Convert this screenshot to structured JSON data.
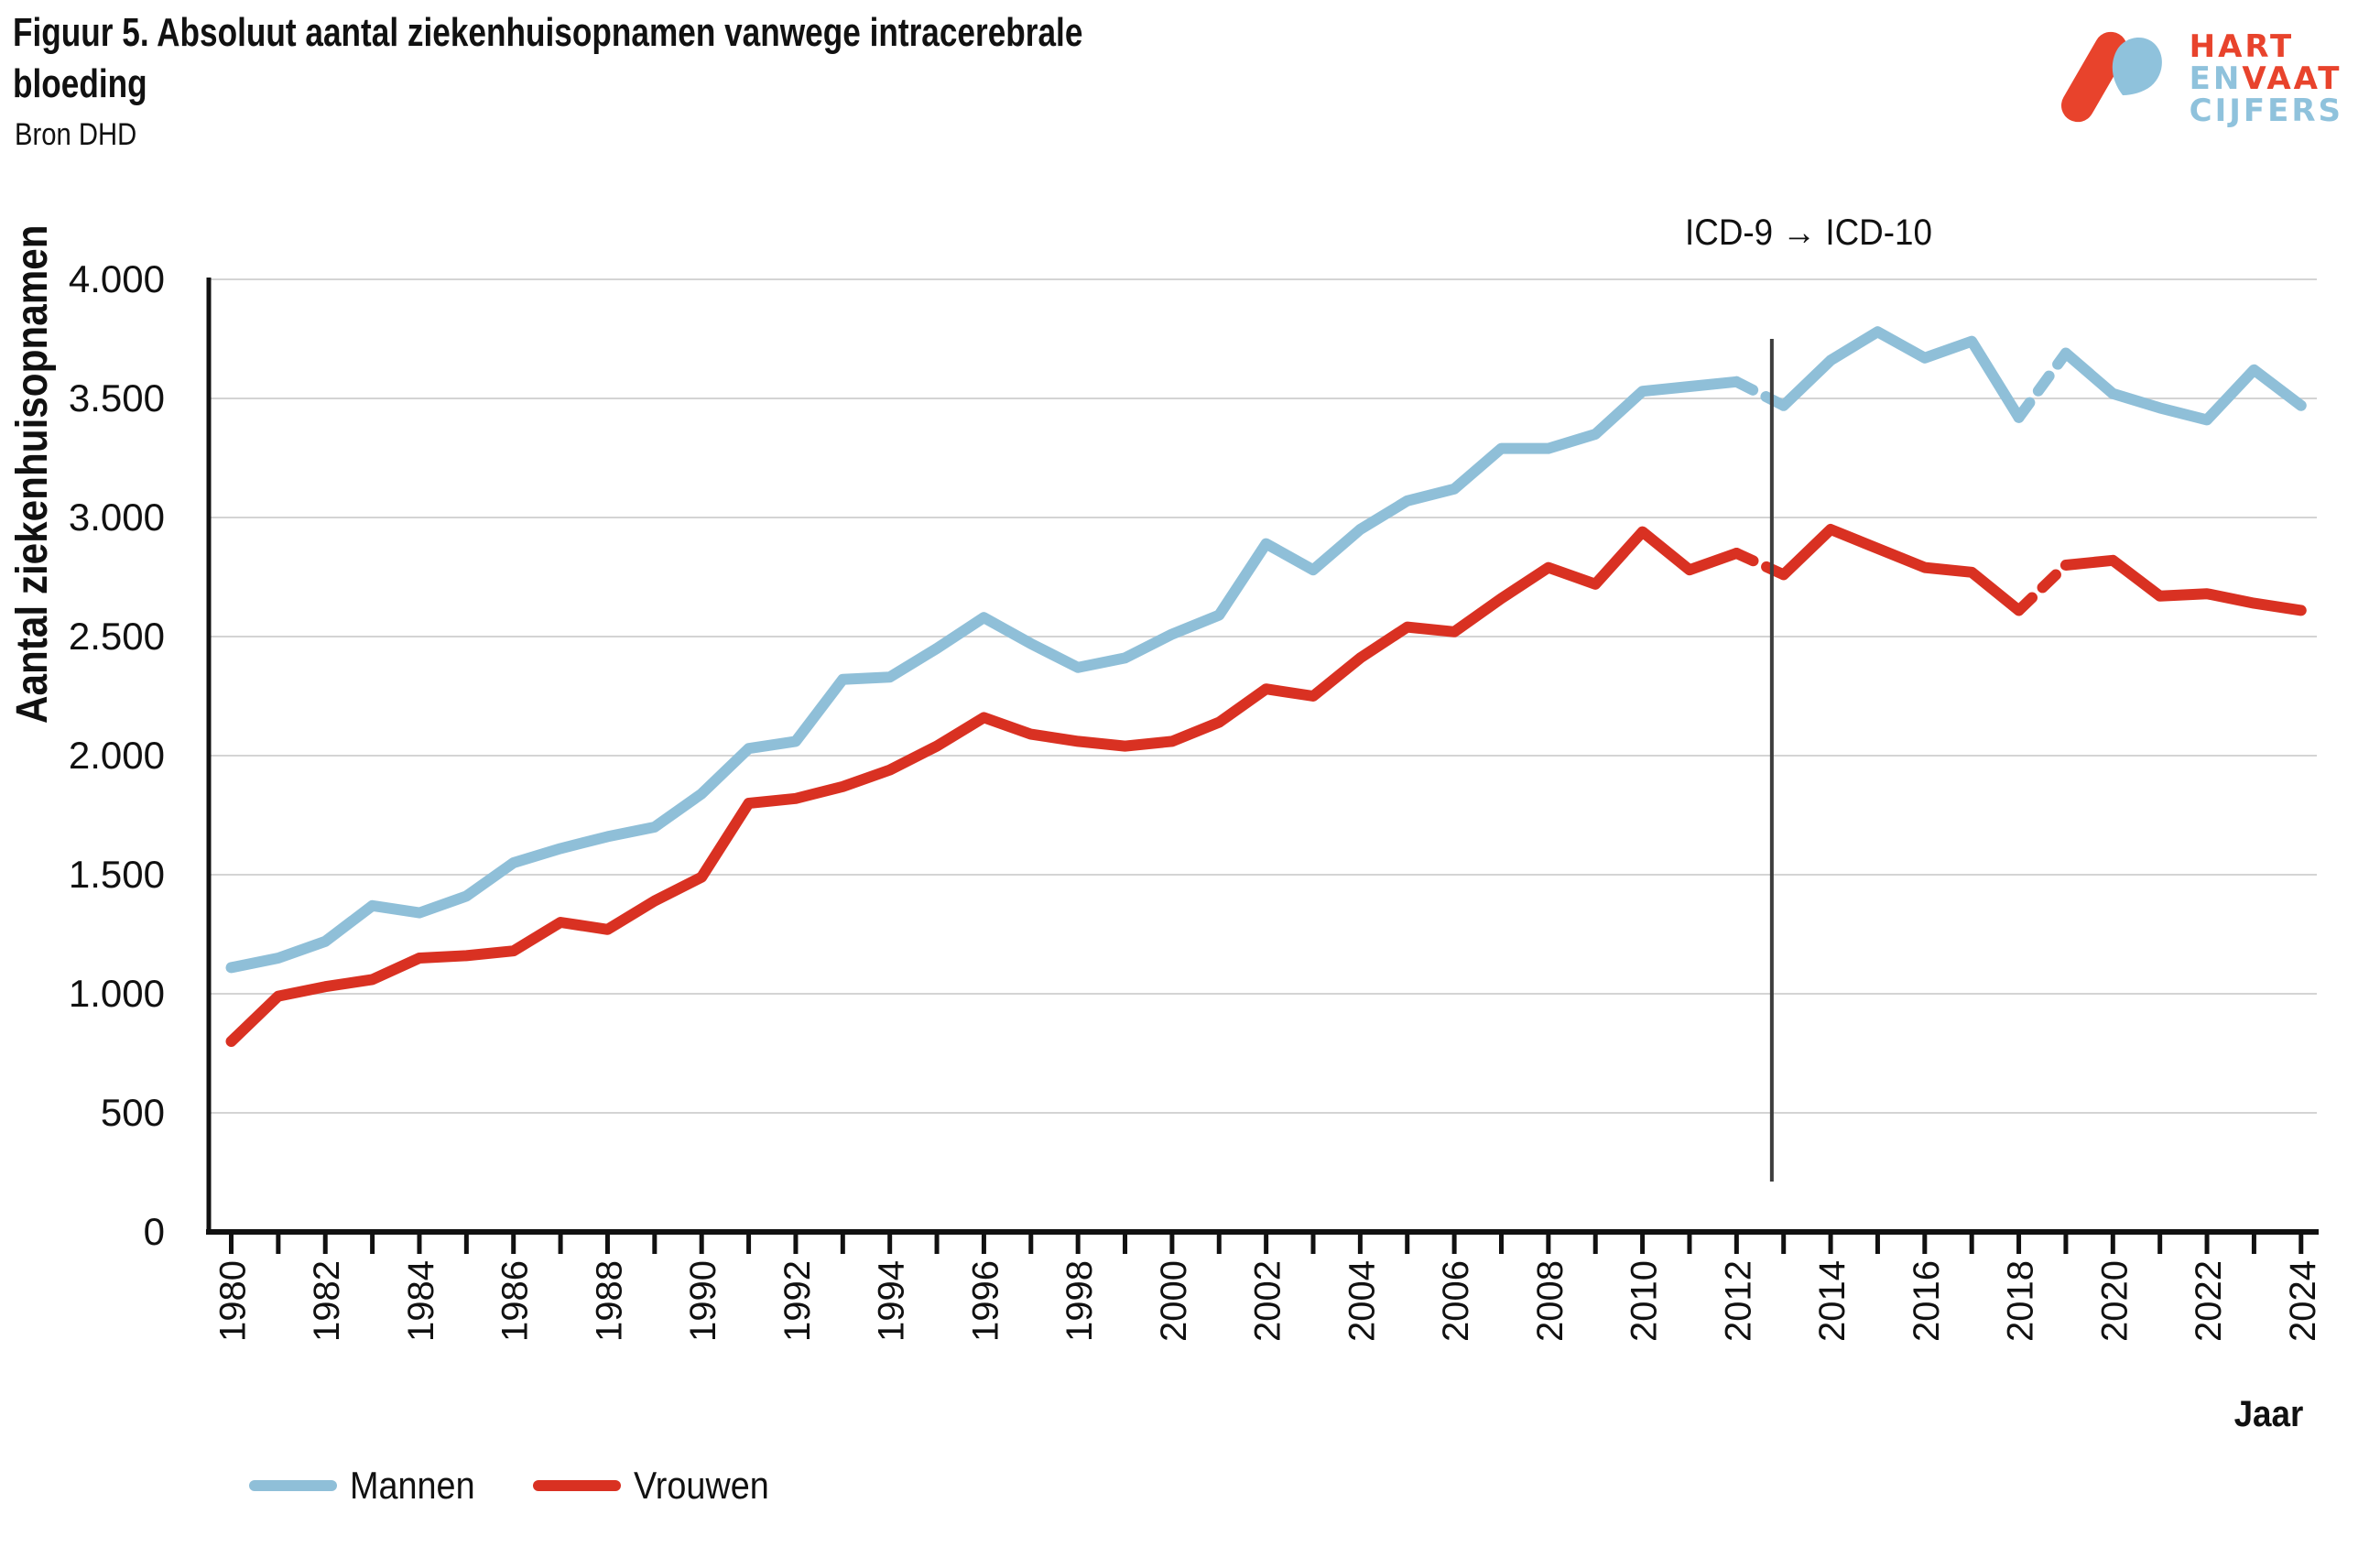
{
  "header": {
    "title_line1": "Figuur 5. Absoluut aantal ziekenhuisopnamen vanwege intracerebrale",
    "title_line2": "bloeding",
    "source": "Bron DHD"
  },
  "logo": {
    "word1": "HART",
    "word2a": "EN",
    "word2b": "VAAT",
    "word3": "CIJFERS",
    "red": "#E8432C",
    "blue": "#8FC2DC"
  },
  "annotation": {
    "label": "ICD-9 → ICD-10",
    "year": 2012.75
  },
  "legend": {
    "items": [
      {
        "label": "Mannen",
        "color": "#8FBFD8"
      },
      {
        "label": "Vrouwen",
        "color": "#D93122"
      }
    ]
  },
  "chart_data": {
    "type": "line",
    "title": "Figuur 5. Absoluut aantal ziekenhuisopnamen vanwege intracerebrale bloeding",
    "subtitle": "Bron DHD",
    "xlabel": "Jaar",
    "ylabel": "Aantal ziekenhuisopnamen",
    "ylim": [
      0,
      4000
    ],
    "grid": "horizontal",
    "legend_position": "bottom-left",
    "x": [
      1980,
      1981,
      1982,
      1983,
      1984,
      1985,
      1986,
      1987,
      1988,
      1989,
      1990,
      1991,
      1992,
      1993,
      1994,
      1995,
      1996,
      1997,
      1998,
      1999,
      2000,
      2001,
      2002,
      2003,
      2004,
      2005,
      2006,
      2007,
      2008,
      2009,
      2010,
      2011,
      2012,
      2013,
      2014,
      2015,
      2016,
      2017,
      2018,
      2019,
      2020,
      2021,
      2022,
      2023,
      2024
    ],
    "series": [
      {
        "name": "Mannen",
        "color": "#8FBFD8",
        "values": [
          1110,
          1150,
          1220,
          1370,
          1340,
          1410,
          1550,
          1610,
          1660,
          1700,
          1840,
          2030,
          2060,
          2320,
          2330,
          2450,
          2580,
          2470,
          2370,
          2410,
          2510,
          2590,
          2890,
          2780,
          2950,
          3070,
          3120,
          3290,
          3290,
          3350,
          3530,
          3550,
          3570,
          3470,
          3660,
          3780,
          3670,
          3740,
          3420,
          3690,
          3520,
          3460,
          3410,
          3620,
          3470
        ]
      },
      {
        "name": "Vrouwen",
        "color": "#D93122",
        "values": [
          800,
          990,
          1030,
          1060,
          1150,
          1160,
          1180,
          1300,
          1270,
          1390,
          1490,
          1800,
          1820,
          1870,
          1940,
          2040,
          2160,
          2090,
          2060,
          2040,
          2060,
          2140,
          2280,
          2250,
          2410,
          2540,
          2520,
          2660,
          2790,
          2720,
          2940,
          2780,
          2850,
          2760,
          2950,
          2870,
          2790,
          2770,
          2610,
          2800,
          2820,
          2670,
          2680,
          2640,
          2610
        ]
      }
    ],
    "dashed_x_ranges": [
      [
        2012,
        2013
      ],
      [
        2018,
        2019
      ]
    ],
    "yticks": [
      {
        "v": 0,
        "label": "0"
      },
      {
        "v": 500,
        "label": "500"
      },
      {
        "v": 1000,
        "label": "1.000"
      },
      {
        "v": 1500,
        "label": "1.500"
      },
      {
        "v": 2000,
        "label": "2.000"
      },
      {
        "v": 2500,
        "label": "2.500"
      },
      {
        "v": 3000,
        "label": "3.000"
      },
      {
        "v": 3500,
        "label": "3.500"
      },
      {
        "v": 4000,
        "label": "4.000"
      }
    ],
    "xtick_label_every": 2,
    "icd_switch_year": 2012.75
  }
}
